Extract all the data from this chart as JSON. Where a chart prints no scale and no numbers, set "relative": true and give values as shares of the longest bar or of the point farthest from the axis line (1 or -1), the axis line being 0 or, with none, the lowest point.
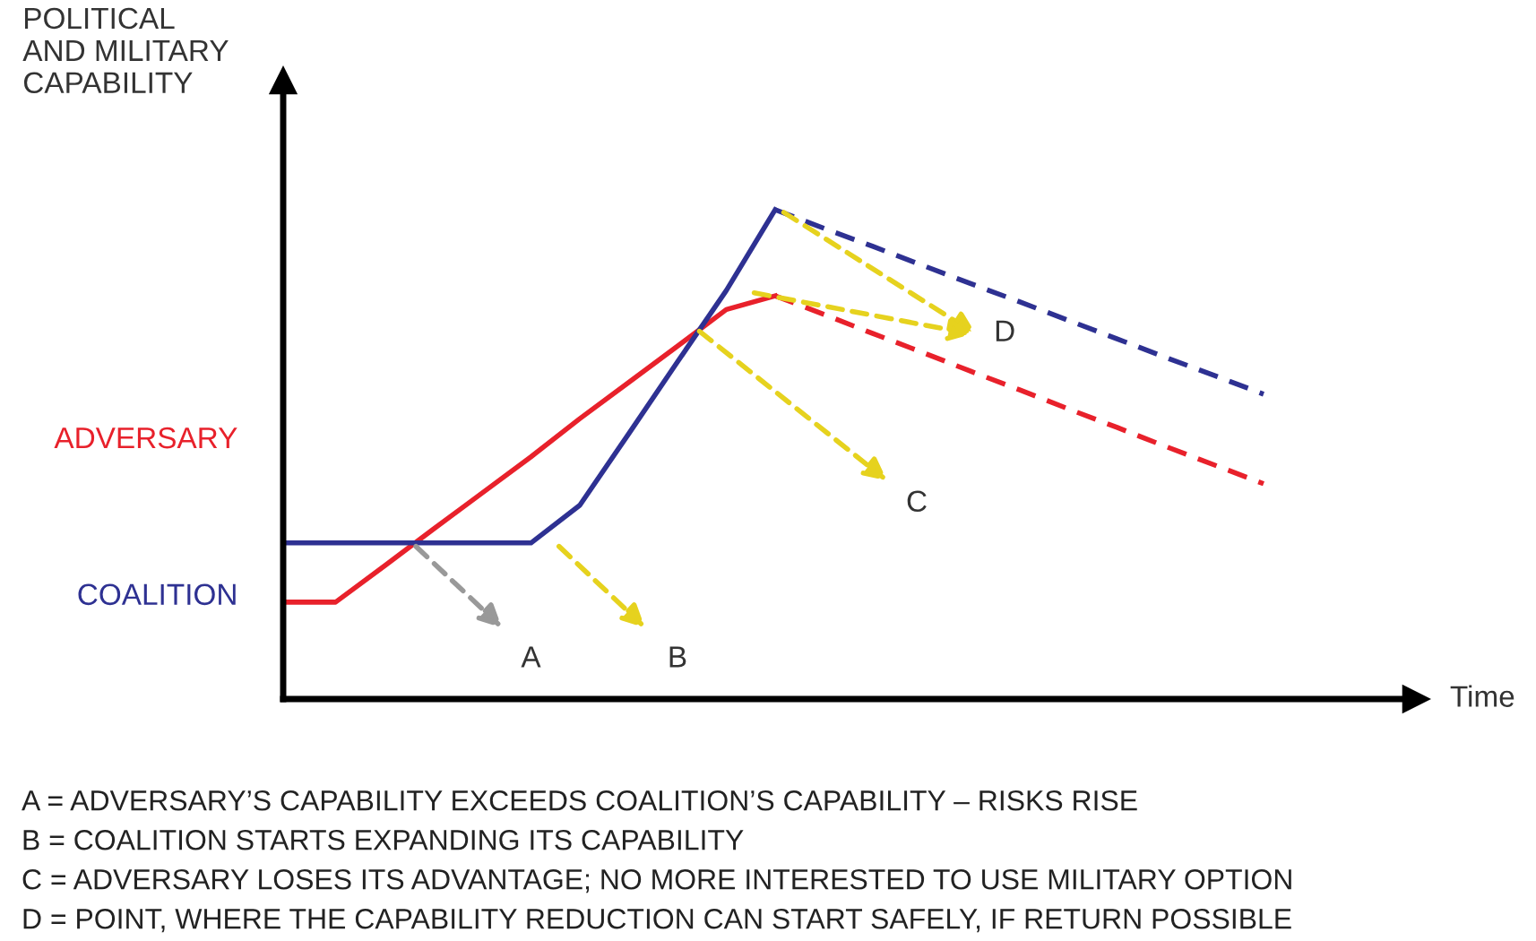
{
  "chart_data": {
    "type": "line",
    "relative": true,
    "ylabel": "POLITICAL\nAND MILITARY\nCAPABILITY",
    "categories": [
      null,
      null,
      null,
      null,
      null,
      null,
      null,
      null,
      null,
      null,
      null,
      null,
      null,
      null,
      null,
      null,
      null,
      null,
      null,
      null,
      null
    ],
    "series": [
      {
        "name": "ADVERSARY",
        "color": "#e8212b",
        "line_style": "solid",
        "values": [
          0.198,
          0.198,
          0.272,
          0.347,
          0.421,
          0.495,
          0.573,
          0.647,
          0.721,
          0.796,
          0.824,
          null,
          null,
          null,
          null,
          null,
          null,
          null,
          null,
          null,
          null
        ]
      },
      {
        "name": "COALITION",
        "color": "#2e3192",
        "line_style": "solid",
        "values": [
          0.319,
          0.319,
          0.319,
          0.319,
          0.319,
          0.319,
          0.396,
          0.542,
          0.689,
          0.835,
          1.0,
          null,
          null,
          null,
          null,
          null,
          null,
          null,
          null,
          null,
          null
        ]
      },
      {
        "color": "#e8212b",
        "line_style": "dashed",
        "values": [
          null,
          null,
          null,
          null,
          null,
          null,
          null,
          null,
          null,
          null,
          0.824,
          0.786,
          0.747,
          0.709,
          0.67,
          0.632,
          0.593,
          0.555,
          0.516,
          0.478,
          0.44
        ]
      },
      {
        "color": "#2e3192",
        "line_style": "dashed",
        "values": [
          null,
          null,
          null,
          null,
          null,
          null,
          null,
          null,
          null,
          null,
          1.0,
          0.962,
          0.925,
          0.887,
          0.849,
          0.812,
          0.774,
          0.736,
          0.698,
          0.661,
          0.623
        ]
      }
    ],
    "legend": false,
    "grid": false,
    "marker": "none",
    "annotations": [
      "A",
      "B",
      "C",
      "D",
      "Time",
      "A = ADVERSARY’S CAPABILITY EXCEEDS COALITION’S CAPABILITY – RISKS RISE",
      "B = COALITION STARTS EXPANDING ITS CAPABILITY",
      "C = ADVERSARY LOSES ITS ADVANTAGE; NO MORE INTERESTED TO USE MILITARY OPTION",
      "D = POINT, WHERE THE CAPABILITY REDUCTION CAN START SAFELY, IF RETURN POSSIBLE"
    ]
  }
}
